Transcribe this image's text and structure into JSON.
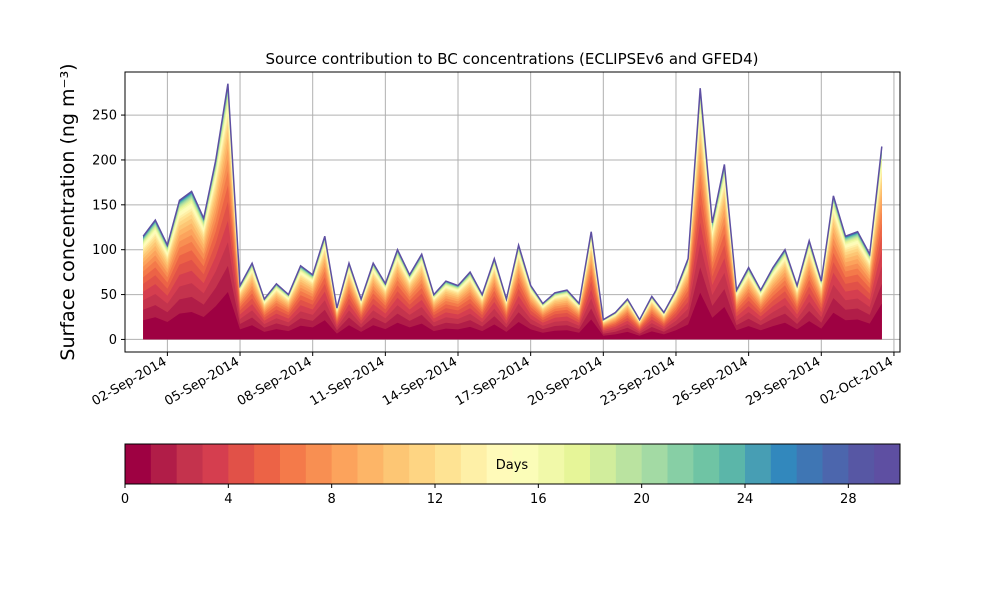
{
  "chart_data": {
    "type": "area",
    "title": "Source contribution to BC concentrations (ECLIPSEv6 and GFED4)",
    "ylabel": "Surface concentration (ng m⁻³)",
    "xlabel": "",
    "ylim": [
      -14,
      298
    ],
    "yticks": [
      0,
      50,
      100,
      150,
      200,
      250
    ],
    "xlim": [
      "2014-08-31T06:00",
      "2014-10-02T06:00"
    ],
    "xticks": [
      "2014-09-02",
      "2014-09-05",
      "2014-09-08",
      "2014-09-11",
      "2014-09-14",
      "2014-09-17",
      "2014-09-20",
      "2014-09-23",
      "2014-09-26",
      "2014-09-29",
      "2014-10-02"
    ],
    "xtick_labels": [
      "02-Sep-2014",
      "05-Sep-2014",
      "08-Sep-2014",
      "11-Sep-2014",
      "14-Sep-2014",
      "17-Sep-2014",
      "20-Sep-2014",
      "23-Sep-2014",
      "26-Sep-2014",
      "29-Sep-2014",
      "02-Oct-2014"
    ],
    "grid": true,
    "total_series": {
      "name": "",
      "x": [
        "2014-09-01T00:00",
        "2014-09-01T12:00",
        "2014-09-02T00:00",
        "2014-09-02T12:00",
        "2014-09-03T00:00",
        "2014-09-03T12:00",
        "2014-09-04T00:00",
        "2014-09-04T12:00",
        "2014-09-05T00:00",
        "2014-09-05T12:00",
        "2014-09-06T00:00",
        "2014-09-06T12:00",
        "2014-09-07T00:00",
        "2014-09-07T12:00",
        "2014-09-08T00:00",
        "2014-09-08T12:00",
        "2014-09-09T00:00",
        "2014-09-09T12:00",
        "2014-09-10T00:00",
        "2014-09-10T12:00",
        "2014-09-11T00:00",
        "2014-09-11T12:00",
        "2014-09-12T00:00",
        "2014-09-12T12:00",
        "2014-09-13T00:00",
        "2014-09-13T12:00",
        "2014-09-14T00:00",
        "2014-09-14T12:00",
        "2014-09-15T00:00",
        "2014-09-15T12:00",
        "2014-09-16T00:00",
        "2014-09-16T12:00",
        "2014-09-17T00:00",
        "2014-09-17T12:00",
        "2014-09-18T00:00",
        "2014-09-18T12:00",
        "2014-09-19T00:00",
        "2014-09-19T12:00",
        "2014-09-20T00:00",
        "2014-09-20T12:00",
        "2014-09-21T00:00",
        "2014-09-21T12:00",
        "2014-09-22T00:00",
        "2014-09-22T12:00",
        "2014-09-23T00:00",
        "2014-09-23T12:00",
        "2014-09-24T00:00",
        "2014-09-24T12:00",
        "2014-09-25T00:00",
        "2014-09-25T12:00",
        "2014-09-26T00:00",
        "2014-09-26T12:00",
        "2014-09-27T00:00",
        "2014-09-27T12:00",
        "2014-09-28T00:00",
        "2014-09-28T12:00",
        "2014-09-29T00:00",
        "2014-09-29T12:00",
        "2014-09-30T00:00",
        "2014-09-30T12:00",
        "2014-10-01T00:00",
        "2014-10-01T12:00"
      ],
      "values": [
        115,
        133,
        105,
        155,
        165,
        135,
        200,
        285,
        60,
        85,
        45,
        62,
        50,
        82,
        72,
        115,
        35,
        85,
        45,
        85,
        62,
        100,
        72,
        95,
        50,
        65,
        60,
        75,
        50,
        90,
        45,
        105,
        60,
        40,
        52,
        55,
        40,
        120,
        22,
        30,
        45,
        22,
        48,
        30,
        55,
        90,
        280,
        130,
        195,
        55,
        80,
        55,
        80,
        100,
        60,
        110,
        65,
        160,
        115,
        120,
        95,
        215
      ]
    },
    "stack_fractions_by_day": [
      0.2,
      0.11,
      0.1,
      0.09,
      0.08,
      0.07,
      0.06,
      0.05,
      0.045,
      0.04,
      0.035,
      0.03,
      0.025,
      0.02,
      0.018,
      0.016,
      0.014,
      0.012,
      0.01,
      0.009,
      0.008,
      0.007,
      0.006,
      0.005,
      0.004,
      0.004,
      0.003,
      0.003,
      0.002,
      0.002
    ],
    "colorbar": {
      "label": "Days",
      "min": 0,
      "max": 30,
      "ticks": [
        0,
        4,
        8,
        12,
        16,
        20,
        24,
        28
      ],
      "colors": [
        "#9e0142",
        "#b11d48",
        "#c4334d",
        "#d53e4f",
        "#e15148",
        "#ec6346",
        "#f47a4a",
        "#f88f52",
        "#fca35c",
        "#fdb567",
        "#fdc674",
        "#fed583",
        "#fee393",
        "#fef0a7",
        "#fffab9",
        "#fbfdb8",
        "#f1f9a9",
        "#e6f598",
        "#d1ed9c",
        "#bae3a0",
        "#a3daa4",
        "#87cfa5",
        "#6fc4a4",
        "#5bb6a9",
        "#479eb4",
        "#3288bd",
        "#3f76b4",
        "#4c66ad",
        "#5757a4",
        "#5e4fa2"
      ]
    }
  }
}
